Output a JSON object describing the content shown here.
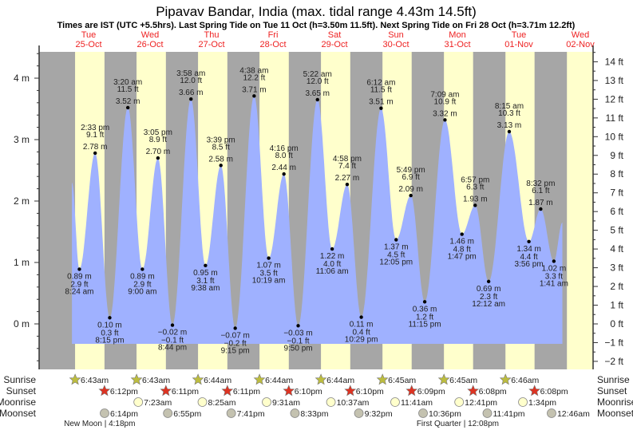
{
  "chart_data": {
    "type": "area",
    "title": "Pipavav Bandar, India (max. tidal range 4.43m 14.5ft)",
    "subtitle": "Times are IST (UTC +5.5hrs). Last Spring Tide on Tue 11 Oct (h=3.50m 11.5ft). Next Spring Tide on Fri 28 Oct (h=3.71m 12.2ft)",
    "ylabel_left_unit": "m",
    "ylabel_right_unit": "ft",
    "ylim_m": [
      -0.75,
      4.5
    ],
    "left_ticks": [
      {
        "v": 4,
        "label": "4 m"
      },
      {
        "v": 3,
        "label": "3 m"
      },
      {
        "v": 2,
        "label": "2 m"
      },
      {
        "v": 1,
        "label": "1 m"
      },
      {
        "v": 0,
        "label": "0 m"
      }
    ],
    "right_ticks": [
      {
        "v": 14,
        "label": "14 ft"
      },
      {
        "v": 13,
        "label": "13 ft"
      },
      {
        "v": 12,
        "label": "12 ft"
      },
      {
        "v": 11,
        "label": "11 ft"
      },
      {
        "v": 10,
        "label": "10 ft"
      },
      {
        "v": 9,
        "label": "9 ft"
      },
      {
        "v": 8,
        "label": "8 ft"
      },
      {
        "v": 7,
        "label": "7 ft"
      },
      {
        "v": 6,
        "label": "6 ft"
      },
      {
        "v": 5,
        "label": "5 ft"
      },
      {
        "v": 4,
        "label": "4 ft"
      },
      {
        "v": 3,
        "label": "3 ft"
      },
      {
        "v": 2,
        "label": "2 ft"
      },
      {
        "v": 1,
        "label": "1 ft"
      },
      {
        "v": 0,
        "label": "0 ft"
      },
      {
        "v": -1,
        "label": "−1 ft"
      },
      {
        "v": -2,
        "label": "−2 ft"
      }
    ],
    "days": [
      {
        "dow": "Tue",
        "date": "25-Oct"
      },
      {
        "dow": "Wed",
        "date": "26-Oct"
      },
      {
        "dow": "Thu",
        "date": "27-Oct"
      },
      {
        "dow": "Fri",
        "date": "28-Oct"
      },
      {
        "dow": "Sat",
        "date": "29-Oct"
      },
      {
        "dow": "Sun",
        "date": "30-Oct"
      },
      {
        "dow": "Mon",
        "date": "31-Oct"
      },
      {
        "dow": "Tue",
        "date": "01-Nov"
      },
      {
        "dow": "Wed",
        "date": "02-Nov"
      }
    ],
    "tides": [
      {
        "day": 0,
        "hour": 8.4,
        "m": 0.89,
        "ft": "2.9 ft",
        "ml": "0.89 m",
        "time": "8:24 am",
        "type": "low"
      },
      {
        "day": 0,
        "hour": 14.55,
        "m": 2.78,
        "ft": "9.1 ft",
        "ml": "2.78 m",
        "time": "2:33 pm",
        "type": "high"
      },
      {
        "day": 0,
        "hour": 20.25,
        "m": 0.1,
        "ft": "0.3 ft",
        "ml": "0.10 m",
        "time": "8:15 pm",
        "type": "low"
      },
      {
        "day": 1,
        "hour": 3.33,
        "m": 3.52,
        "ft": "11.5 ft",
        "ml": "3.52 m",
        "time": "3:20 am",
        "type": "high"
      },
      {
        "day": 1,
        "hour": 9.0,
        "m": 0.89,
        "ft": "2.9 ft",
        "ml": "0.89 m",
        "time": "9:00 am",
        "type": "low"
      },
      {
        "day": 1,
        "hour": 15.08,
        "m": 2.7,
        "ft": "8.9 ft",
        "ml": "2.70 m",
        "time": "3:05 pm",
        "type": "high"
      },
      {
        "day": 1,
        "hour": 20.73,
        "m": -0.02,
        "ft": "−0.1 ft",
        "ml": "−0.02 m",
        "time": "8:44 pm",
        "type": "low"
      },
      {
        "day": 2,
        "hour": 3.97,
        "m": 3.66,
        "ft": "12.0 ft",
        "ml": "3.66 m",
        "time": "3:58 am",
        "type": "high"
      },
      {
        "day": 2,
        "hour": 9.63,
        "m": 0.95,
        "ft": "3.1 ft",
        "ml": "0.95 m",
        "time": "9:38 am",
        "type": "low"
      },
      {
        "day": 2,
        "hour": 15.65,
        "m": 2.58,
        "ft": "8.5 ft",
        "ml": "2.58 m",
        "time": "3:39 pm",
        "type": "high"
      },
      {
        "day": 2,
        "hour": 21.25,
        "m": -0.07,
        "ft": "−0.2 ft",
        "ml": "−0.07 m",
        "time": "9:15 pm",
        "type": "low"
      },
      {
        "day": 3,
        "hour": 4.63,
        "m": 3.71,
        "ft": "12.2 ft",
        "ml": "3.71 m",
        "time": "4:38 am",
        "type": "high"
      },
      {
        "day": 3,
        "hour": 10.32,
        "m": 1.07,
        "ft": "3.5 ft",
        "ml": "1.07 m",
        "time": "10:19 am",
        "type": "low"
      },
      {
        "day": 3,
        "hour": 16.27,
        "m": 2.44,
        "ft": "8.0 ft",
        "ml": "2.44 m",
        "time": "4:16 pm",
        "type": "high"
      },
      {
        "day": 3,
        "hour": 21.83,
        "m": -0.03,
        "ft": "−0.1 ft",
        "ml": "−0.03 m",
        "time": "9:50 pm",
        "type": "low"
      },
      {
        "day": 4,
        "hour": 5.37,
        "m": 3.65,
        "ft": "12.0 ft",
        "ml": "3.65 m",
        "time": "5:22 am",
        "type": "high"
      },
      {
        "day": 4,
        "hour": 11.1,
        "m": 1.22,
        "ft": "4.0 ft",
        "ml": "1.22 m",
        "time": "11:06 am",
        "type": "low"
      },
      {
        "day": 4,
        "hour": 16.97,
        "m": 2.27,
        "ft": "7.4 ft",
        "ml": "2.27 m",
        "time": "4:58 pm",
        "type": "high"
      },
      {
        "day": 4,
        "hour": 22.48,
        "m": 0.11,
        "ft": "0.4 ft",
        "ml": "0.11 m",
        "time": "10:29 pm",
        "type": "low"
      },
      {
        "day": 5,
        "hour": 6.2,
        "m": 3.51,
        "ft": "11.5 ft",
        "ml": "3.51 m",
        "time": "6:12 am",
        "type": "high"
      },
      {
        "day": 5,
        "hour": 12.08,
        "m": 1.37,
        "ft": "4.5 ft",
        "ml": "1.37 m",
        "time": "12:05 pm",
        "type": "low"
      },
      {
        "day": 5,
        "hour": 17.82,
        "m": 2.09,
        "ft": "6.9 ft",
        "ml": "2.09 m",
        "time": "5:49 pm",
        "type": "high"
      },
      {
        "day": 5,
        "hour": 23.25,
        "m": 0.36,
        "ft": "1.2 ft",
        "ml": "0.36 m",
        "time": "11:15 pm",
        "type": "low"
      },
      {
        "day": 6,
        "hour": 7.15,
        "m": 3.32,
        "ft": "10.9 ft",
        "ml": "3.32 m",
        "time": "7:09 am",
        "type": "high"
      },
      {
        "day": 6,
        "hour": 13.78,
        "m": 1.46,
        "ft": "4.8 ft",
        "ml": "1.46 m",
        "time": "1:47 pm",
        "type": "low"
      },
      {
        "day": 6,
        "hour": 18.95,
        "m": 1.93,
        "ft": "6.3 ft",
        "ml": "1.93 m",
        "time": "6:57 pm",
        "type": "high"
      },
      {
        "day": 7,
        "hour": 0.2,
        "m": 0.69,
        "ft": "2.3 ft",
        "ml": "0.69 m",
        "time": "12:12 am",
        "type": "low"
      },
      {
        "day": 7,
        "hour": 8.25,
        "m": 3.13,
        "ft": "10.3 ft",
        "ml": "3.13 m",
        "time": "8:15 am",
        "type": "high"
      },
      {
        "day": 7,
        "hour": 15.93,
        "m": 1.34,
        "ft": "4.4 ft",
        "ml": "1.34 m",
        "time": "3:56 pm",
        "type": "low"
      },
      {
        "day": 7,
        "hour": 20.53,
        "m": 1.87,
        "ft": "6.1 ft",
        "ml": "1.87 m",
        "time": "8:32 pm",
        "type": "high"
      },
      {
        "day": 8,
        "hour": 1.68,
        "m": 1.02,
        "ft": "3.3 ft",
        "ml": "1.02 m",
        "time": "1:41 am",
        "type": "low"
      }
    ],
    "curve_start": {
      "day": 0,
      "hour": 5.5,
      "m": 2.3
    },
    "curve_end": {
      "day": 8,
      "hour": 5.0,
      "m": 1.65
    },
    "daylight": [
      {
        "rise": 6.72,
        "set": 18.2
      },
      {
        "rise": 6.72,
        "set": 18.18
      },
      {
        "rise": 6.73,
        "set": 18.18
      },
      {
        "rise": 6.73,
        "set": 18.17
      },
      {
        "rise": 6.73,
        "set": 18.17
      },
      {
        "rise": 6.75,
        "set": 18.15
      },
      {
        "rise": 6.75,
        "set": 18.13
      },
      {
        "rise": 6.77,
        "set": 18.13
      },
      {
        "rise": 6.77,
        "set": 18.13
      }
    ],
    "colors": {
      "night": "#a6a6a6",
      "day": "#ffffcc",
      "water": "#9fb1ff",
      "day_label": "#ee2222",
      "axis": "#333333"
    }
  },
  "astro": {
    "row_labels": {
      "sunrise": "Sunrise",
      "sunset": "Sunset",
      "moonrise": "Moonrise",
      "moonset": "Moonset"
    },
    "sunrise": [
      {
        "day": 0,
        "hour": 6.72,
        "label": "6:43am"
      },
      {
        "day": 1,
        "hour": 6.72,
        "label": "6:43am"
      },
      {
        "day": 2,
        "hour": 6.73,
        "label": "6:44am"
      },
      {
        "day": 3,
        "hour": 6.73,
        "label": "6:44am"
      },
      {
        "day": 4,
        "hour": 6.73,
        "label": "6:44am"
      },
      {
        "day": 5,
        "hour": 6.75,
        "label": "6:45am"
      },
      {
        "day": 6,
        "hour": 6.75,
        "label": "6:45am"
      },
      {
        "day": 7,
        "hour": 6.77,
        "label": "6:46am"
      }
    ],
    "sunset": [
      {
        "day": 0,
        "hour": 18.2,
        "label": "6:12pm"
      },
      {
        "day": 1,
        "hour": 18.18,
        "label": "6:11pm"
      },
      {
        "day": 2,
        "hour": 18.18,
        "label": "6:11pm"
      },
      {
        "day": 3,
        "hour": 18.17,
        "label": "6:10pm"
      },
      {
        "day": 4,
        "hour": 18.17,
        "label": "6:10pm"
      },
      {
        "day": 5,
        "hour": 18.15,
        "label": "6:09pm"
      },
      {
        "day": 6,
        "hour": 18.13,
        "label": "6:08pm"
      },
      {
        "day": 7,
        "hour": 18.13,
        "label": "6:08pm"
      }
    ],
    "moonrise": [
      {
        "day": 1,
        "hour": 7.38,
        "label": "7:23am"
      },
      {
        "day": 2,
        "hour": 8.42,
        "label": "8:25am"
      },
      {
        "day": 3,
        "hour": 9.52,
        "label": "9:31am"
      },
      {
        "day": 4,
        "hour": 10.62,
        "label": "10:37am"
      },
      {
        "day": 5,
        "hour": 11.68,
        "label": "11:41am"
      },
      {
        "day": 6,
        "hour": 12.68,
        "label": "12:41pm"
      },
      {
        "day": 7,
        "hour": 13.57,
        "label": "1:34pm"
      }
    ],
    "moonset": [
      {
        "day": 0,
        "hour": 18.23,
        "label": "6:14pm"
      },
      {
        "day": 1,
        "hour": 18.92,
        "label": "6:55pm"
      },
      {
        "day": 2,
        "hour": 19.68,
        "label": "7:41pm"
      },
      {
        "day": 3,
        "hour": 20.55,
        "label": "8:33pm"
      },
      {
        "day": 4,
        "hour": 21.53,
        "label": "9:32pm"
      },
      {
        "day": 5,
        "hour": 22.6,
        "label": "10:36pm"
      },
      {
        "day": 6,
        "hour": 23.68,
        "label": "11:41pm"
      },
      {
        "day": 8,
        "hour": 0.77,
        "label": "12:46am"
      }
    ],
    "moon_phases": [
      {
        "day": 0,
        "hour": 16.3,
        "label": "New Moon | 4:18pm"
      },
      {
        "day": 6,
        "hour": 12.13,
        "label": "First Quarter | 12:08pm"
      }
    ],
    "colors": {
      "sunrise": "#bdbd3f",
      "sunset": "#dd3322",
      "moonrise": "#ffffcc",
      "moonset": "#c4c2b0"
    }
  }
}
